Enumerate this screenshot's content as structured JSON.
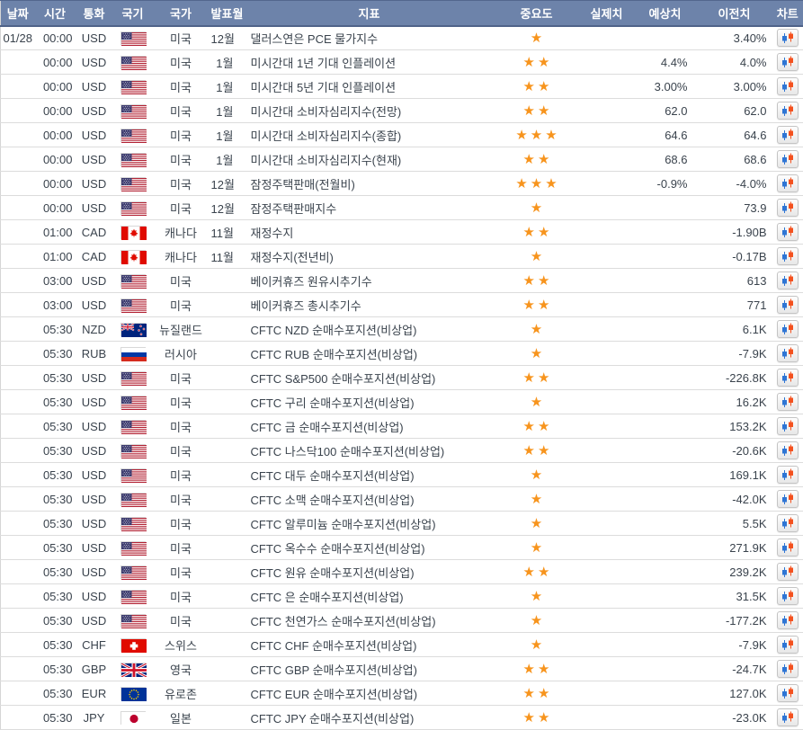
{
  "colors": {
    "header_bg": "#6d83aa",
    "header_text": "#ffffff",
    "row_text": "#3a434d",
    "star": "#f7941d",
    "candle_up": "#f4511e",
    "candle_down": "#2e75d4"
  },
  "table": {
    "columns": [
      {
        "key": "date",
        "label": "날짜"
      },
      {
        "key": "time",
        "label": "시간"
      },
      {
        "key": "currency",
        "label": "통화"
      },
      {
        "key": "flag",
        "label": "국기"
      },
      {
        "key": "country",
        "label": "국가"
      },
      {
        "key": "month",
        "label": "발표월"
      },
      {
        "key": "indicator",
        "label": "지표"
      },
      {
        "key": "importance",
        "label": "중요도"
      },
      {
        "key": "actual",
        "label": "실제치"
      },
      {
        "key": "forecast",
        "label": "예상치"
      },
      {
        "key": "previous",
        "label": "이전치"
      },
      {
        "key": "chart",
        "label": "차트"
      }
    ],
    "chart_button_icon": "candlestick-chart-icon",
    "importance_icon": "star-icon",
    "rows": [
      {
        "date": "01/28",
        "time": "00:00",
        "currency": "USD",
        "flag": "us",
        "country": "미국",
        "month": "12월",
        "indicator": "댈러스연은 PCE 물가지수",
        "importance": 1,
        "actual": "",
        "forecast": "",
        "previous": "3.40%"
      },
      {
        "date": "",
        "time": "00:00",
        "currency": "USD",
        "flag": "us",
        "country": "미국",
        "month": "1월",
        "indicator": "미시간대 1년 기대 인플레이션",
        "importance": 2,
        "actual": "",
        "forecast": "4.4%",
        "previous": "4.0%"
      },
      {
        "date": "",
        "time": "00:00",
        "currency": "USD",
        "flag": "us",
        "country": "미국",
        "month": "1월",
        "indicator": "미시간대 5년 기대 인플레이션",
        "importance": 2,
        "actual": "",
        "forecast": "3.00%",
        "previous": "3.00%"
      },
      {
        "date": "",
        "time": "00:00",
        "currency": "USD",
        "flag": "us",
        "country": "미국",
        "month": "1월",
        "indicator": "미시간대 소비자심리지수(전망)",
        "importance": 2,
        "actual": "",
        "forecast": "62.0",
        "previous": "62.0"
      },
      {
        "date": "",
        "time": "00:00",
        "currency": "USD",
        "flag": "us",
        "country": "미국",
        "month": "1월",
        "indicator": "미시간대 소비자심리지수(종합)",
        "importance": 3,
        "actual": "",
        "forecast": "64.6",
        "previous": "64.6"
      },
      {
        "date": "",
        "time": "00:00",
        "currency": "USD",
        "flag": "us",
        "country": "미국",
        "month": "1월",
        "indicator": "미시간대 소비자심리지수(현재)",
        "importance": 2,
        "actual": "",
        "forecast": "68.6",
        "previous": "68.6"
      },
      {
        "date": "",
        "time": "00:00",
        "currency": "USD",
        "flag": "us",
        "country": "미국",
        "month": "12월",
        "indicator": "잠정주택판매(전월비)",
        "importance": 3,
        "actual": "",
        "forecast": "-0.9%",
        "previous": "-4.0%"
      },
      {
        "date": "",
        "time": "00:00",
        "currency": "USD",
        "flag": "us",
        "country": "미국",
        "month": "12월",
        "indicator": "잠정주택판매지수",
        "importance": 1,
        "actual": "",
        "forecast": "",
        "previous": "73.9"
      },
      {
        "date": "",
        "time": "01:00",
        "currency": "CAD",
        "flag": "ca",
        "country": "캐나다",
        "month": "11월",
        "indicator": "재정수지",
        "importance": 2,
        "actual": "",
        "forecast": "",
        "previous": "-1.90B"
      },
      {
        "date": "",
        "time": "01:00",
        "currency": "CAD",
        "flag": "ca",
        "country": "캐나다",
        "month": "11월",
        "indicator": "재정수지(전년비)",
        "importance": 1,
        "actual": "",
        "forecast": "",
        "previous": "-0.17B"
      },
      {
        "date": "",
        "time": "03:00",
        "currency": "USD",
        "flag": "us",
        "country": "미국",
        "month": "",
        "indicator": "베이커휴즈 원유시추기수",
        "importance": 2,
        "actual": "",
        "forecast": "",
        "previous": "613"
      },
      {
        "date": "",
        "time": "03:00",
        "currency": "USD",
        "flag": "us",
        "country": "미국",
        "month": "",
        "indicator": "베이커휴즈 총시추기수",
        "importance": 2,
        "actual": "",
        "forecast": "",
        "previous": "771"
      },
      {
        "date": "",
        "time": "05:30",
        "currency": "NZD",
        "flag": "nz",
        "country": "뉴질랜드",
        "month": "",
        "indicator": "CFTC NZD 순매수포지션(비상업)",
        "importance": 1,
        "actual": "",
        "forecast": "",
        "previous": "6.1K"
      },
      {
        "date": "",
        "time": "05:30",
        "currency": "RUB",
        "flag": "ru",
        "country": "러시아",
        "month": "",
        "indicator": "CFTC RUB 순매수포지션(비상업)",
        "importance": 1,
        "actual": "",
        "forecast": "",
        "previous": "-7.9K"
      },
      {
        "date": "",
        "time": "05:30",
        "currency": "USD",
        "flag": "us",
        "country": "미국",
        "month": "",
        "indicator": "CFTC S&P500 순매수포지션(비상업)",
        "importance": 2,
        "actual": "",
        "forecast": "",
        "previous": "-226.8K"
      },
      {
        "date": "",
        "time": "05:30",
        "currency": "USD",
        "flag": "us",
        "country": "미국",
        "month": "",
        "indicator": "CFTC 구리 순매수포지션(비상업)",
        "importance": 1,
        "actual": "",
        "forecast": "",
        "previous": "16.2K"
      },
      {
        "date": "",
        "time": "05:30",
        "currency": "USD",
        "flag": "us",
        "country": "미국",
        "month": "",
        "indicator": "CFTC 금 순매수포지션(비상업)",
        "importance": 2,
        "actual": "",
        "forecast": "",
        "previous": "153.2K"
      },
      {
        "date": "",
        "time": "05:30",
        "currency": "USD",
        "flag": "us",
        "country": "미국",
        "month": "",
        "indicator": "CFTC 나스닥100 순매수포지션(비상업)",
        "importance": 2,
        "actual": "",
        "forecast": "",
        "previous": "-20.6K"
      },
      {
        "date": "",
        "time": "05:30",
        "currency": "USD",
        "flag": "us",
        "country": "미국",
        "month": "",
        "indicator": "CFTC 대두 순매수포지션(비상업)",
        "importance": 1,
        "actual": "",
        "forecast": "",
        "previous": "169.1K"
      },
      {
        "date": "",
        "time": "05:30",
        "currency": "USD",
        "flag": "us",
        "country": "미국",
        "month": "",
        "indicator": "CFTC 소맥 순매수포지션(비상업)",
        "importance": 1,
        "actual": "",
        "forecast": "",
        "previous": "-42.0K"
      },
      {
        "date": "",
        "time": "05:30",
        "currency": "USD",
        "flag": "us",
        "country": "미국",
        "month": "",
        "indicator": "CFTC 알루미늄 순매수포지션(비상업)",
        "importance": 1,
        "actual": "",
        "forecast": "",
        "previous": "5.5K"
      },
      {
        "date": "",
        "time": "05:30",
        "currency": "USD",
        "flag": "us",
        "country": "미국",
        "month": "",
        "indicator": "CFTC 옥수수 순매수포지션(비상업)",
        "importance": 1,
        "actual": "",
        "forecast": "",
        "previous": "271.9K"
      },
      {
        "date": "",
        "time": "05:30",
        "currency": "USD",
        "flag": "us",
        "country": "미국",
        "month": "",
        "indicator": "CFTC 원유 순매수포지션(비상업)",
        "importance": 2,
        "actual": "",
        "forecast": "",
        "previous": "239.2K"
      },
      {
        "date": "",
        "time": "05:30",
        "currency": "USD",
        "flag": "us",
        "country": "미국",
        "month": "",
        "indicator": "CFTC 은 순매수포지션(비상업)",
        "importance": 1,
        "actual": "",
        "forecast": "",
        "previous": "31.5K"
      },
      {
        "date": "",
        "time": "05:30",
        "currency": "USD",
        "flag": "us",
        "country": "미국",
        "month": "",
        "indicator": "CFTC 천연가스 순매수포지션(비상업)",
        "importance": 1,
        "actual": "",
        "forecast": "",
        "previous": "-177.2K"
      },
      {
        "date": "",
        "time": "05:30",
        "currency": "CHF",
        "flag": "ch",
        "country": "스위스",
        "month": "",
        "indicator": "CFTC CHF 순매수포지션(비상업)",
        "importance": 1,
        "actual": "",
        "forecast": "",
        "previous": "-7.9K"
      },
      {
        "date": "",
        "time": "05:30",
        "currency": "GBP",
        "flag": "gb",
        "country": "영국",
        "month": "",
        "indicator": "CFTC GBP 순매수포지션(비상업)",
        "importance": 2,
        "actual": "",
        "forecast": "",
        "previous": "-24.7K"
      },
      {
        "date": "",
        "time": "05:30",
        "currency": "EUR",
        "flag": "eu",
        "country": "유로존",
        "month": "",
        "indicator": "CFTC EUR 순매수포지션(비상업)",
        "importance": 2,
        "actual": "",
        "forecast": "",
        "previous": "127.0K"
      },
      {
        "date": "",
        "time": "05:30",
        "currency": "JPY",
        "flag": "jp",
        "country": "일본",
        "month": "",
        "indicator": "CFTC JPY 순매수포지션(비상업)",
        "importance": 2,
        "actual": "",
        "forecast": "",
        "previous": "-23.0K"
      }
    ]
  }
}
